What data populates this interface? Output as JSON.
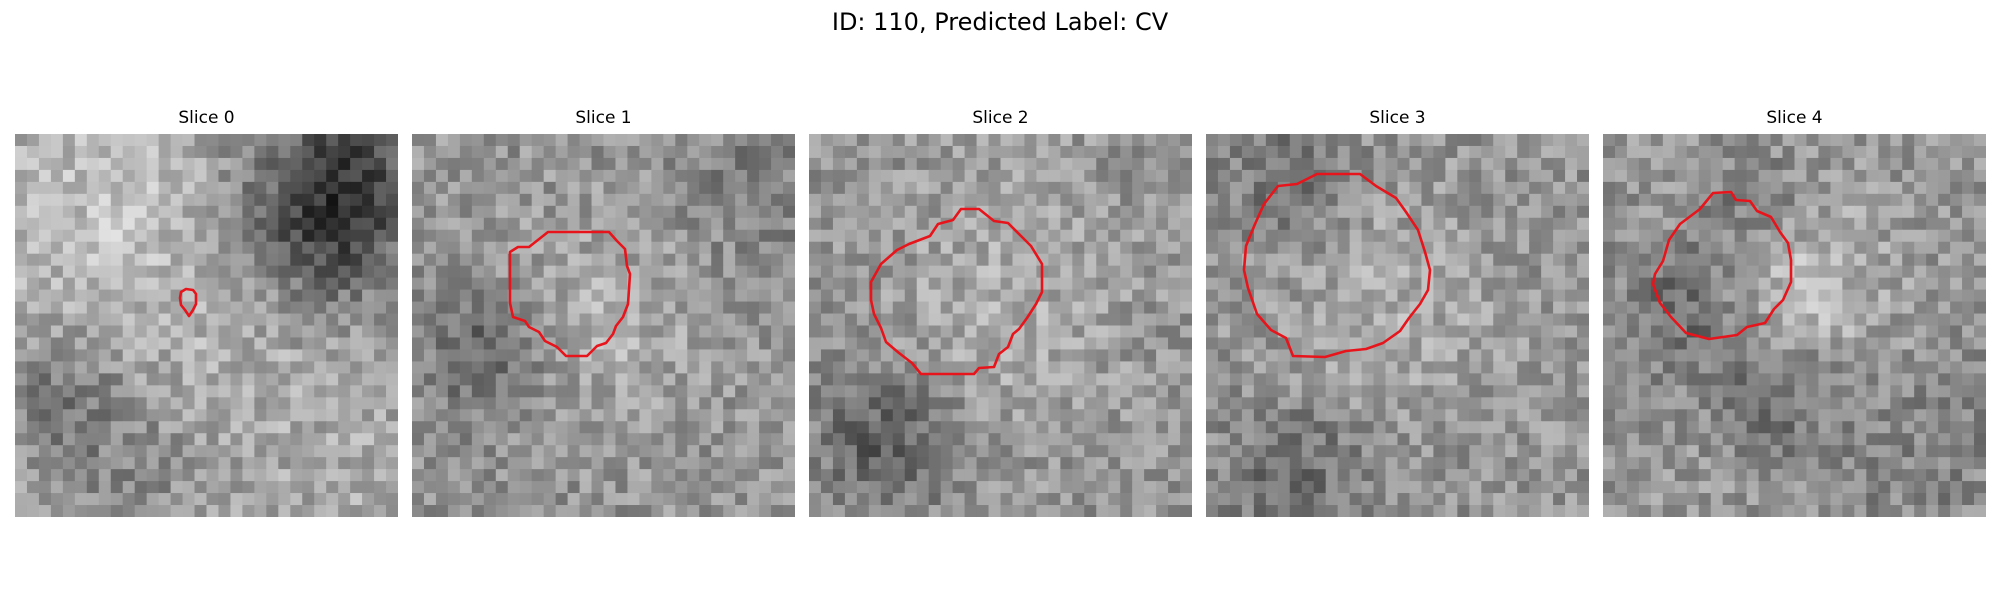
{
  "figure": {
    "title": "ID: 110, Predicted Label: CV"
  },
  "panels": [
    {
      "title": "Slice 0",
      "contour_color": "#e8141b"
    },
    {
      "title": "Slice 1",
      "contour_color": "#e8141b"
    },
    {
      "title": "Slice 2",
      "contour_color": "#e8141b"
    },
    {
      "title": "Slice 3",
      "contour_color": "#e8141b"
    },
    {
      "title": "Slice 4",
      "contour_color": "#e8141b"
    }
  ]
}
